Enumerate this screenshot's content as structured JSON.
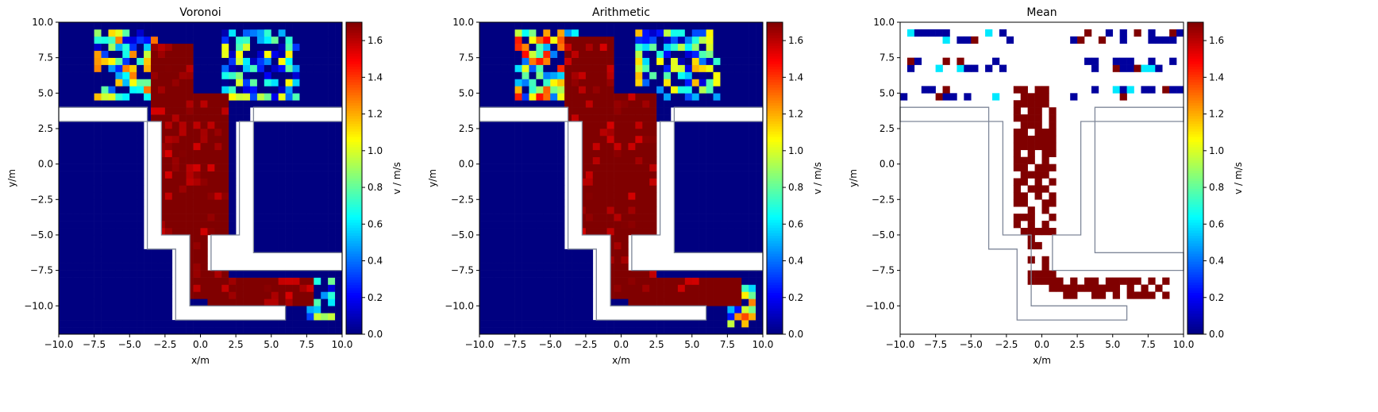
{
  "chart_data": [
    {
      "type": "heatmap",
      "title": "Voronoi",
      "xlabel": "x/m",
      "ylabel": "y/m",
      "xlim": [
        -10,
        10
      ],
      "ylim": [
        -12,
        10
      ],
      "xticks": [
        "−10.0",
        "−7.5",
        "−5.0",
        "−2.5",
        "0.0",
        "2.5",
        "5.0",
        "7.5",
        "10.0"
      ],
      "yticks": [
        "−10.0",
        "−7.5",
        "−5.0",
        "−2.5",
        "0.0",
        "2.5",
        "5.0",
        "7.5",
        "10.0"
      ],
      "colorbar": {
        "label": "v / m/s",
        "min": 0.0,
        "max": 1.7,
        "colormap": "jet",
        "ticks": [
          "0.0",
          "0.2",
          "0.4",
          "0.6",
          "0.8",
          "1.0",
          "1.2",
          "1.4",
          "1.6"
        ]
      },
      "background_value": 0.0,
      "high_value_regions": [
        {
          "x": [
            -3.5,
            -0.5
          ],
          "y": [
            -5.0,
            8.5
          ],
          "value": 1.7
        },
        {
          "x": [
            -1.0,
            2.0
          ],
          "y": [
            -9.5,
            5.0
          ],
          "value": 1.7
        },
        {
          "x": [
            0.5,
            8.0
          ],
          "y": [
            -10.0,
            -8.0
          ],
          "value": 1.7
        }
      ],
      "medium_value_regions": [
        {
          "x": [
            -7.5,
            -3.0
          ],
          "y": [
            4.5,
            9.5
          ],
          "value": 0.7
        },
        {
          "x": [
            1.5,
            7.0
          ],
          "y": [
            4.5,
            9.5
          ],
          "value": 0.5
        },
        {
          "x": [
            7.5,
            9.5
          ],
          "y": [
            -11.0,
            -8.0
          ],
          "value": 0.6
        }
      ]
    },
    {
      "type": "heatmap",
      "title": "Arithmetic",
      "xlabel": "x/m",
      "ylabel": "y/m",
      "xlim": [
        -10,
        10
      ],
      "ylim": [
        -12,
        10
      ],
      "xticks": [
        "−10.0",
        "−7.5",
        "−5.0",
        "−2.5",
        "0.0",
        "2.5",
        "5.0",
        "7.5",
        "10.0"
      ],
      "yticks": [
        "−10.0",
        "−7.5",
        "−5.0",
        "−2.5",
        "0.0",
        "2.5",
        "5.0",
        "7.5",
        "10.0"
      ],
      "colorbar": {
        "label": "v / m/s",
        "min": 0.0,
        "max": 1.7,
        "colormap": "jet",
        "ticks": [
          "0.0",
          "0.2",
          "0.4",
          "0.6",
          "0.8",
          "1.0",
          "1.2",
          "1.4",
          "1.6"
        ]
      },
      "background_value": 0.0,
      "high_value_regions": [
        {
          "x": [
            -4.0,
            -0.5
          ],
          "y": [
            -5.0,
            9.0
          ],
          "value": 1.7
        },
        {
          "x": [
            -1.0,
            2.5
          ],
          "y": [
            -9.5,
            5.0
          ],
          "value": 1.7
        },
        {
          "x": [
            0.5,
            8.5
          ],
          "y": [
            -10.0,
            -8.0
          ],
          "value": 1.7
        }
      ],
      "medium_value_regions": [
        {
          "x": [
            -7.5,
            -3.0
          ],
          "y": [
            4.5,
            9.5
          ],
          "value": 0.9
        },
        {
          "x": [
            1.0,
            7.0
          ],
          "y": [
            4.5,
            9.5
          ],
          "value": 0.6
        },
        {
          "x": [
            7.5,
            9.5
          ],
          "y": [
            -11.5,
            -8.0
          ],
          "value": 0.8
        }
      ]
    },
    {
      "type": "heatmap",
      "title": "Mean",
      "xlabel": "x/m",
      "ylabel": "y/m",
      "xlim": [
        -10,
        10
      ],
      "ylim": [
        -12,
        10
      ],
      "xticks": [
        "−10.0",
        "−7.5",
        "−5.0",
        "−2.5",
        "0.0",
        "2.5",
        "5.0",
        "7.5",
        "10.0"
      ],
      "yticks": [
        "−10.0",
        "−7.5",
        "−5.0",
        "−2.5",
        "0.0",
        "2.5",
        "5.0",
        "7.5",
        "10.0"
      ],
      "colorbar": {
        "label": "v / m/s",
        "min": 0.0,
        "max": 1.7,
        "colormap": "jet",
        "ticks": [
          "0.0",
          "0.2",
          "0.4",
          "0.6",
          "0.8",
          "1.0",
          "1.2",
          "1.4",
          "1.6"
        ]
      },
      "background_value": null,
      "high_value_regions": [
        {
          "x": [
            -2.0,
            1.0
          ],
          "y": [
            -8.5,
            5.5
          ],
          "value": 1.7
        },
        {
          "x": [
            0.5,
            9.0
          ],
          "y": [
            -9.5,
            -8.0
          ],
          "value": 1.7
        }
      ],
      "scatter_rows_y": [
        9.0,
        7.0,
        5.0
      ]
    }
  ]
}
